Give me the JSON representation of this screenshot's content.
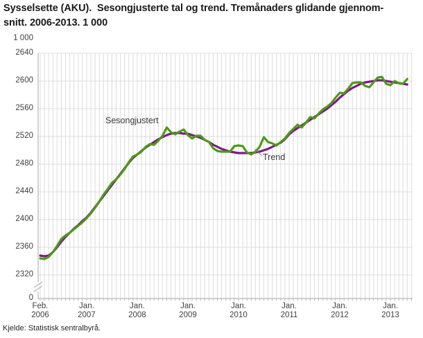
{
  "title": {
    "line1": "Sysselsette (AKU).  Sesongjusterte tal og trend. Tremånaders glidande gjennom-",
    "line2": "snitt. 2006-2013. 1 000"
  },
  "source": "Kjelde: Statistisk sentralbyrå.",
  "chart_data": {
    "type": "line",
    "title": "Sysselsette (AKU). Sesongjusterte tal og trend. Tremånaders glidande gjennomsnitt. 2006-2013. 1 000",
    "unit_label": "1 000",
    "xlabel": "",
    "ylabel": "",
    "ylim_shown": [
      2320,
      2640
    ],
    "y_tick_step": 40,
    "y_ticks": [
      2640,
      2600,
      2560,
      2520,
      2480,
      2440,
      2400,
      2360,
      2320
    ],
    "y_axis_zero": "0",
    "axis_break_to_zero": true,
    "grid": "monthly vertical + 40-unit horizontal, light gray",
    "legend_position": "inline annotations on chart",
    "start_month": "2006-02",
    "end_month": "2013-05",
    "frequency": "monthly",
    "x_ticks": [
      {
        "month": "Feb.",
        "year": "2006",
        "month_index": 0
      },
      {
        "month": "Jan.",
        "year": "2007",
        "month_index": 11
      },
      {
        "month": "Jan.",
        "year": "2008",
        "month_index": 23
      },
      {
        "month": "Jan.",
        "year": "2009",
        "month_index": 35
      },
      {
        "month": "Jan.",
        "year": "2010",
        "month_index": 47
      },
      {
        "month": "Jan.",
        "year": "2011",
        "month_index": 59
      },
      {
        "month": "Jan.",
        "year": "2012",
        "month_index": 71
      },
      {
        "month": "Jan.",
        "year": "2013",
        "month_index": 83
      }
    ],
    "series": [
      {
        "name": "Trend",
        "color": "#7d1a86",
        "values": [
          2348,
          2347,
          2348,
          2353,
          2360,
          2368,
          2375,
          2381,
          2387,
          2392,
          2398,
          2403,
          2410,
          2418,
          2426,
          2434,
          2442,
          2450,
          2458,
          2466,
          2474,
          2482,
          2489,
          2494,
          2499,
          2504,
          2508,
          2512,
          2516,
          2519,
          2522,
          2524,
          2525,
          2525,
          2524,
          2524,
          2522,
          2520,
          2518,
          2515,
          2512,
          2508,
          2505,
          2502,
          2500,
          2498,
          2497,
          2496,
          2496,
          2496,
          2496,
          2497,
          2498,
          2500,
          2502,
          2505,
          2508,
          2511,
          2516,
          2523,
          2528,
          2532,
          2536,
          2540,
          2544,
          2548,
          2552,
          2556,
          2560,
          2565,
          2570,
          2576,
          2581,
          2586,
          2590,
          2593,
          2596,
          2598,
          2599,
          2600,
          2601,
          2601,
          2600,
          2599,
          2598,
          2597,
          2596,
          2595
        ]
      },
      {
        "name": "Sesongjustert",
        "color": "#4c9a16",
        "values": [
          2344,
          2343,
          2346,
          2353,
          2362,
          2372,
          2377,
          2381,
          2386,
          2391,
          2396,
          2402,
          2409,
          2417,
          2426,
          2436,
          2444,
          2453,
          2458,
          2465,
          2473,
          2483,
          2491,
          2494,
          2498,
          2505,
          2509,
          2508,
          2514,
          2521,
          2533,
          2526,
          2523,
          2527,
          2530,
          2522,
          2517,
          2521,
          2521,
          2515,
          2512,
          2503,
          2499,
          2498,
          2498,
          2498,
          2506,
          2507,
          2506,
          2497,
          2494,
          2498,
          2505,
          2519,
          2512,
          2510,
          2507,
          2512,
          2517,
          2525,
          2531,
          2537,
          2533,
          2540,
          2548,
          2546,
          2553,
          2559,
          2563,
          2568,
          2576,
          2583,
          2582,
          2589,
          2597,
          2598,
          2598,
          2593,
          2591,
          2598,
          2605,
          2606,
          2596,
          2594,
          2600,
          2597,
          2596,
          2603
        ]
      }
    ],
    "annotations": [
      {
        "text": "Sesongjustert",
        "points_to": "green seasonally adjusted line"
      },
      {
        "text": "Trend",
        "points_to": "purple trend line"
      }
    ],
    "colors": {
      "gridline": "#dcdcdc",
      "axis": "#b5b5b5",
      "tick": "#c2c2c2",
      "text": "#404040"
    }
  }
}
